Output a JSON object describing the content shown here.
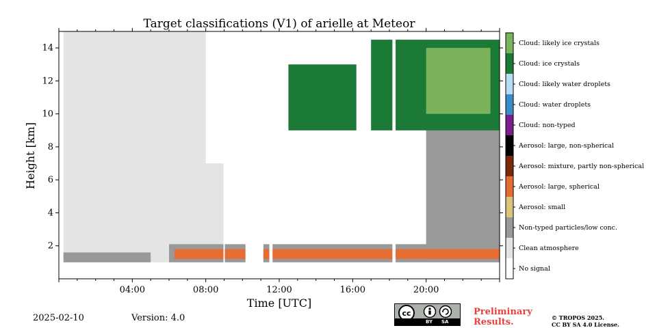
{
  "chart_data": {
    "type": "heatmap",
    "title": "Target classifications (V1) of arielle at Meteor",
    "xlabel": "Time [UTC]",
    "ylabel": "Height [km]",
    "xlim_hours": [
      0,
      24
    ],
    "ylim_km": [
      0,
      15
    ],
    "x_ticks": [
      {
        "hours": 4,
        "label": "04:00"
      },
      {
        "hours": 8,
        "label": "08:00"
      },
      {
        "hours": 12,
        "label": "12:00"
      },
      {
        "hours": 16,
        "label": "16:00"
      },
      {
        "hours": 20,
        "label": "20:00"
      }
    ],
    "y_ticks": [
      2,
      4,
      6,
      8,
      10,
      12,
      14
    ],
    "colorbar": [
      {
        "label": "Cloud: likely ice crystals",
        "color": "#7bb35c"
      },
      {
        "label": "Cloud: ice crystals",
        "color": "#1b7a36"
      },
      {
        "label": "Cloud: likely water droplets",
        "color": "#b7dcf3"
      },
      {
        "label": "Cloud: water droplets",
        "color": "#3b8dc9"
      },
      {
        "label": "Cloud: non-typed",
        "color": "#7a1f8e"
      },
      {
        "label": "Aerosol: large, non-spherical",
        "color": "#000000"
      },
      {
        "label": "Aerosol: mixture, partly non-spherical",
        "color": "#7a2a08"
      },
      {
        "label": "Aerosol: large, spherical",
        "color": "#e66e32"
      },
      {
        "label": "Aerosol: small",
        "color": "#dcc57a"
      },
      {
        "label": "Non-typed particles/low conc.",
        "color": "#999999"
      },
      {
        "label": "Clean atmosphere",
        "color": "#e4e4e4"
      },
      {
        "label": "No signal",
        "color": "#ffffff"
      }
    ],
    "regions": [
      {
        "class": "Clean atmosphere",
        "x": [
          0.25,
          8.0
        ],
        "y": [
          1.0,
          15.0
        ]
      },
      {
        "class": "Clean atmosphere",
        "x": [
          8.0,
          9.0
        ],
        "y": [
          1.0,
          7.0
        ]
      },
      {
        "class": "Clean atmosphere",
        "x": [
          20.0,
          24.0
        ],
        "y": [
          1.0,
          14.3
        ]
      },
      {
        "class": "Non-typed particles/low conc.",
        "x": [
          0.25,
          5.0
        ],
        "y": [
          1.0,
          1.6
        ]
      },
      {
        "class": "Non-typed particles/low conc.",
        "x": [
          6.0,
          24.0
        ],
        "y": [
          1.0,
          2.1
        ]
      },
      {
        "class": "Non-typed particles/low conc.",
        "x": [
          20.0,
          24.0
        ],
        "y": [
          2.0,
          12.0
        ]
      },
      {
        "class": "Cloud: ice crystals",
        "x": [
          12.5,
          16.2
        ],
        "y": [
          9.0,
          13.0
        ]
      },
      {
        "class": "Cloud: ice crystals",
        "x": [
          17.0,
          24.0
        ],
        "y": [
          9.0,
          14.5
        ]
      },
      {
        "class": "Cloud: likely ice crystals",
        "x": [
          20.0,
          23.5
        ],
        "y": [
          10.0,
          14.0
        ]
      },
      {
        "class": "Aerosol: large, spherical",
        "x": [
          6.3,
          24.0
        ],
        "y": [
          1.2,
          1.8
        ]
      }
    ],
    "no_signal_gaps": [
      [
        9.0,
        9.0
      ],
      [
        10.2,
        11.1
      ],
      [
        11.5,
        11.6
      ],
      [
        18.2,
        18.3
      ]
    ]
  },
  "footer": {
    "date": "2025-02-10",
    "version": "Version: 4.0",
    "preliminary_line1": "Preliminary",
    "preliminary_line2": "Results.",
    "copyright_line1": "© TROPOS 2025.",
    "copyright_line2": "CC BY SA 4.0 License.",
    "license_badge": {
      "icons": [
        "cc-icon",
        "attribution-icon",
        "share-alike-icon"
      ],
      "by": "BY",
      "sa": "SA"
    }
  }
}
